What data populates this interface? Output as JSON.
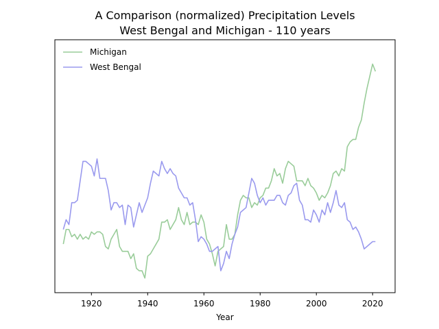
{
  "chart_data": {
    "type": "line",
    "title_lines": [
      "A Comparison (normalized) Precipitation Levels",
      "West Bengal and Michigan - 110 years"
    ],
    "xlabel": "Year",
    "ylabel": "",
    "xlim": [
      1907,
      2028
    ],
    "ylim": [
      -0.02,
      1.02
    ],
    "x_ticks": [
      1920,
      1940,
      1960,
      1980,
      2000,
      2020
    ],
    "y_ticks_visible": false,
    "grid": false,
    "legend_position": "top-left",
    "x": [
      1910,
      1911,
      1912,
      1913,
      1914,
      1915,
      1916,
      1917,
      1918,
      1919,
      1920,
      1921,
      1922,
      1923,
      1924,
      1925,
      1926,
      1927,
      1928,
      1929,
      1930,
      1931,
      1932,
      1933,
      1934,
      1935,
      1936,
      1937,
      1938,
      1939,
      1940,
      1941,
      1942,
      1943,
      1944,
      1945,
      1946,
      1947,
      1948,
      1949,
      1950,
      1951,
      1952,
      1953,
      1954,
      1955,
      1956,
      1957,
      1958,
      1959,
      1960,
      1961,
      1962,
      1963,
      1964,
      1965,
      1966,
      1967,
      1968,
      1969,
      1970,
      1971,
      1972,
      1973,
      1974,
      1975,
      1976,
      1977,
      1978,
      1979,
      1980,
      1981,
      1982,
      1983,
      1984,
      1985,
      1986,
      1987,
      1988,
      1989,
      1990,
      1991,
      1992,
      1993,
      1994,
      1995,
      1996,
      1997,
      1998,
      1999,
      2000,
      2001,
      2002,
      2003,
      2004,
      2005,
      2006,
      2007,
      2008,
      2009,
      2010,
      2011,
      2012,
      2013,
      2014,
      2015,
      2016,
      2017,
      2018,
      2019,
      2020,
      2021
    ],
    "series": [
      {
        "name": "Michigan",
        "color": "#99cc99",
        "values": [
          0.18,
          0.24,
          0.24,
          0.21,
          0.22,
          0.2,
          0.22,
          0.2,
          0.21,
          0.2,
          0.23,
          0.22,
          0.23,
          0.23,
          0.22,
          0.17,
          0.16,
          0.2,
          0.22,
          0.24,
          0.17,
          0.15,
          0.15,
          0.15,
          0.12,
          0.14,
          0.08,
          0.07,
          0.07,
          0.04,
          0.13,
          0.14,
          0.16,
          0.18,
          0.2,
          0.27,
          0.27,
          0.28,
          0.24,
          0.26,
          0.28,
          0.33,
          0.28,
          0.26,
          0.31,
          0.26,
          0.27,
          0.27,
          0.26,
          0.3,
          0.27,
          0.2,
          0.18,
          0.14,
          0.09,
          0.15,
          0.16,
          0.17,
          0.26,
          0.2,
          0.2,
          0.22,
          0.3,
          0.36,
          0.38,
          0.37,
          0.37,
          0.33,
          0.35,
          0.34,
          0.37,
          0.38,
          0.41,
          0.41,
          0.44,
          0.49,
          0.46,
          0.47,
          0.43,
          0.49,
          0.52,
          0.51,
          0.5,
          0.44,
          0.44,
          0.44,
          0.42,
          0.45,
          0.42,
          0.41,
          0.39,
          0.36,
          0.38,
          0.37,
          0.39,
          0.42,
          0.47,
          0.48,
          0.46,
          0.49,
          0.48,
          0.58,
          0.6,
          0.61,
          0.61,
          0.66,
          0.69,
          0.76,
          0.82,
          0.87,
          0.92,
          0.89
        ]
      },
      {
        "name": "West Bengal",
        "color": "#9999ee",
        "values": [
          0.24,
          0.28,
          0.26,
          0.35,
          0.35,
          0.36,
          0.44,
          0.52,
          0.52,
          0.51,
          0.5,
          0.46,
          0.53,
          0.45,
          0.45,
          0.45,
          0.4,
          0.32,
          0.35,
          0.35,
          0.33,
          0.34,
          0.26,
          0.34,
          0.33,
          0.25,
          0.3,
          0.35,
          0.31,
          0.34,
          0.37,
          0.43,
          0.48,
          0.47,
          0.46,
          0.52,
          0.49,
          0.47,
          0.49,
          0.47,
          0.46,
          0.41,
          0.39,
          0.37,
          0.37,
          0.34,
          0.35,
          0.28,
          0.19,
          0.21,
          0.2,
          0.18,
          0.15,
          0.15,
          0.16,
          0.17,
          0.07,
          0.1,
          0.15,
          0.12,
          0.18,
          0.22,
          0.25,
          0.31,
          0.32,
          0.33,
          0.39,
          0.45,
          0.43,
          0.38,
          0.35,
          0.37,
          0.34,
          0.36,
          0.36,
          0.36,
          0.38,
          0.38,
          0.35,
          0.34,
          0.38,
          0.39,
          0.42,
          0.43,
          0.36,
          0.34,
          0.28,
          0.28,
          0.27,
          0.32,
          0.3,
          0.27,
          0.32,
          0.3,
          0.35,
          0.31,
          0.35,
          0.4,
          0.34,
          0.33,
          0.35,
          0.28,
          0.27,
          0.24,
          0.25,
          0.23,
          0.2,
          0.16,
          0.17,
          0.18,
          0.19,
          0.19
        ]
      }
    ]
  }
}
